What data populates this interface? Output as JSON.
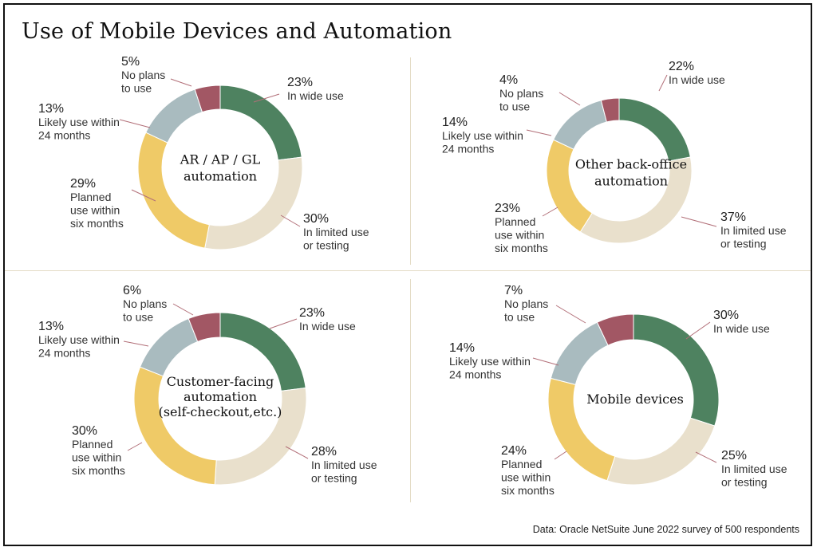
{
  "title": "Use of Mobile Devices and Automation",
  "source": "Data: Oracle NetSuite June 2022 survey of 500 respondents",
  "colors": {
    "in_wide_use": "#4e8260",
    "in_limited_use": "#e9e0cc",
    "planned_six_months": "#efca67",
    "likely_24_months": "#a9bbbf",
    "no_plans": "#a25764",
    "leader_line": "#b26f78",
    "divider": "#e4dcc6"
  },
  "chart_data": [
    {
      "type": "pie",
      "title": "AR / AP / GL automation",
      "title_lines": [
        "AR / AP / GL",
        "automation"
      ],
      "categories": [
        "In wide use",
        "In limited use or testing",
        "Planned use within six months",
        "Likely use within 24 months",
        "No plans to use"
      ],
      "values": [
        23,
        30,
        29,
        13,
        5
      ],
      "value_labels": [
        "23%",
        "30%",
        "29%",
        "13%",
        "5%"
      ],
      "label_lines": [
        [
          "In wide use"
        ],
        [
          "In limited use",
          "or testing"
        ],
        [
          "Planned",
          "use within",
          "six months"
        ],
        [
          "Likely use within",
          "24 months"
        ],
        [
          "No plans",
          "to use"
        ]
      ]
    },
    {
      "type": "pie",
      "title": "Other back-office automation",
      "title_lines": [
        "Other back-office",
        "automation"
      ],
      "categories": [
        "In wide use",
        "In limited use or testing",
        "Planned use within six months",
        "Likely use within 24 months",
        "No plans to use"
      ],
      "values": [
        22,
        37,
        23,
        14,
        4
      ],
      "value_labels": [
        "22%",
        "37%",
        "23%",
        "14%",
        "4%"
      ],
      "label_lines": [
        [
          "In wide use"
        ],
        [
          "In limited use",
          "or testing"
        ],
        [
          "Planned",
          "use within",
          "six months"
        ],
        [
          "Likely use within",
          "24 months"
        ],
        [
          "No plans",
          "to use"
        ]
      ]
    },
    {
      "type": "pie",
      "title": "Customer-facing automation (self-checkout,etc.)",
      "title_lines": [
        "Customer-facing",
        "automation",
        "(self-checkout,etc.)"
      ],
      "categories": [
        "In wide use",
        "In limited use or testing",
        "Planned use within six months",
        "Likely use within 24 months",
        "No plans to use"
      ],
      "values": [
        23,
        28,
        30,
        13,
        6
      ],
      "value_labels": [
        "23%",
        "28%",
        "30%",
        "13%",
        "6%"
      ],
      "label_lines": [
        [
          "In wide use"
        ],
        [
          "In limited use",
          "or testing"
        ],
        [
          "Planned",
          "use within",
          "six months"
        ],
        [
          "Likely use within",
          "24 months"
        ],
        [
          "No plans",
          "to use"
        ]
      ]
    },
    {
      "type": "pie",
      "title": "Mobile devices",
      "title_lines": [
        "Mobile devices"
      ],
      "categories": [
        "In wide use",
        "In limited use or testing",
        "Planned use within six months",
        "Likely use within 24 months",
        "No plans to use"
      ],
      "values": [
        30,
        25,
        24,
        14,
        7
      ],
      "value_labels": [
        "30%",
        "25%",
        "24%",
        "14%",
        "7%"
      ],
      "label_lines": [
        [
          "In wide use"
        ],
        [
          "In limited use",
          "or testing"
        ],
        [
          "Planned",
          "use within",
          "six months"
        ],
        [
          "Likely use within",
          "24 months"
        ],
        [
          "No plans",
          "to use"
        ]
      ]
    }
  ]
}
